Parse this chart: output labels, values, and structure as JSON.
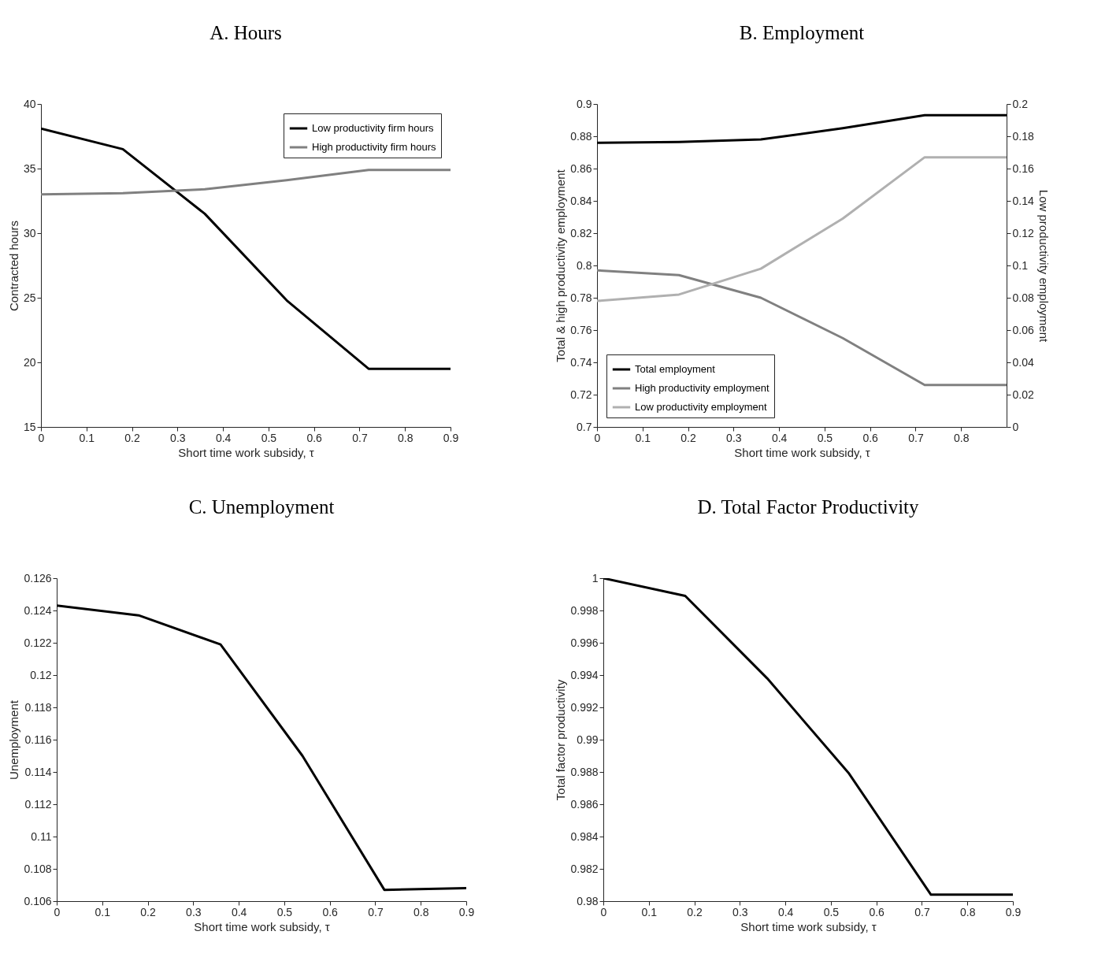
{
  "chart_data": [
    {
      "type": "line",
      "title": "A. Hours",
      "xlabel": "Short time work subsidy, τ",
      "ylabel": "Contracted hours",
      "x": [
        0,
        0.18,
        0.36,
        0.54,
        0.72,
        0.9
      ],
      "xlim": [
        0,
        0.9
      ],
      "xticks": [
        0,
        0.1,
        0.2,
        0.3,
        0.4,
        0.5,
        0.6,
        0.7,
        0.8,
        0.9
      ],
      "ylim": [
        15,
        40
      ],
      "yticks": [
        15,
        20,
        25,
        30,
        35,
        40
      ],
      "legend": "top right",
      "series": [
        {
          "name": "Low productivity firm hours",
          "color": "#000000",
          "values": [
            38.1,
            36.5,
            31.5,
            24.8,
            19.5,
            19.5
          ]
        },
        {
          "name": "High productivity firm hours",
          "color": "#808080",
          "values": [
            33.0,
            33.1,
            33.4,
            34.1,
            34.9,
            34.9
          ]
        }
      ]
    },
    {
      "type": "line",
      "title": "B. Employment",
      "xlabel": "Short time work subsidy, τ",
      "ylabel": "Total & high productivity employment",
      "y2label": "Low productivity employment",
      "x": [
        0,
        0.18,
        0.36,
        0.54,
        0.72,
        0.9
      ],
      "xlim": [
        0,
        0.9
      ],
      "xticks": [
        0,
        0.1,
        0.2,
        0.3,
        0.4,
        0.5,
        0.6,
        0.7,
        0.8
      ],
      "ylim": [
        0.7,
        0.9
      ],
      "yticks": [
        0.7,
        0.72,
        0.74,
        0.76,
        0.78,
        0.8,
        0.82,
        0.84,
        0.86,
        0.88,
        0.9
      ],
      "y2lim": [
        0,
        0.2
      ],
      "y2ticks": [
        0,
        0.02,
        0.04,
        0.06,
        0.08,
        0.1,
        0.12,
        0.14,
        0.16,
        0.18,
        0.2
      ],
      "legend": "bottom left",
      "series": [
        {
          "name": "Total employment",
          "color": "#000000",
          "values": [
            0.876,
            0.8765,
            0.878,
            0.885,
            0.893,
            0.893
          ]
        },
        {
          "name": "High productivity employment",
          "color": "#808080",
          "values": [
            0.797,
            0.794,
            0.78,
            0.755,
            0.726,
            0.726
          ]
        },
        {
          "name": "Low productivity employment",
          "color": "#b0b0b0",
          "axis": "y2",
          "values": [
            0.078,
            0.082,
            0.098,
            0.129,
            0.167,
            0.167
          ]
        }
      ]
    },
    {
      "type": "line",
      "title": "C. Unemployment",
      "xlabel": "Short time work subsidy, τ",
      "ylabel": "Unemployment",
      "x": [
        0,
        0.18,
        0.36,
        0.54,
        0.72,
        0.9
      ],
      "xlim": [
        0,
        0.9
      ],
      "xticks": [
        0,
        0.1,
        0.2,
        0.3,
        0.4,
        0.5,
        0.6,
        0.7,
        0.8,
        0.9
      ],
      "ylim": [
        0.106,
        0.126
      ],
      "yticks": [
        0.106,
        0.108,
        0.11,
        0.112,
        0.114,
        0.116,
        0.118,
        0.12,
        0.122,
        0.124,
        0.126
      ],
      "series": [
        {
          "color": "#000000",
          "values": [
            0.1243,
            0.1237,
            0.1219,
            0.115,
            0.1067,
            0.1068
          ]
        }
      ]
    },
    {
      "type": "line",
      "title": "D. Total Factor Productivity",
      "xlabel": "Short time work subsidy, τ",
      "ylabel": "Total factor productivity",
      "x": [
        0,
        0.18,
        0.36,
        0.54,
        0.72,
        0.9
      ],
      "xlim": [
        0,
        0.9
      ],
      "xticks": [
        0,
        0.1,
        0.2,
        0.3,
        0.4,
        0.5,
        0.6,
        0.7,
        0.8,
        0.9
      ],
      "ylim": [
        0.98,
        1
      ],
      "yticks": [
        0.98,
        0.982,
        0.984,
        0.986,
        0.988,
        0.99,
        0.992,
        0.994,
        0.996,
        0.998,
        1
      ],
      "series": [
        {
          "color": "#000000",
          "values": [
            1.0,
            0.9989,
            0.9938,
            0.9879,
            0.9804,
            0.9804
          ]
        }
      ]
    }
  ]
}
